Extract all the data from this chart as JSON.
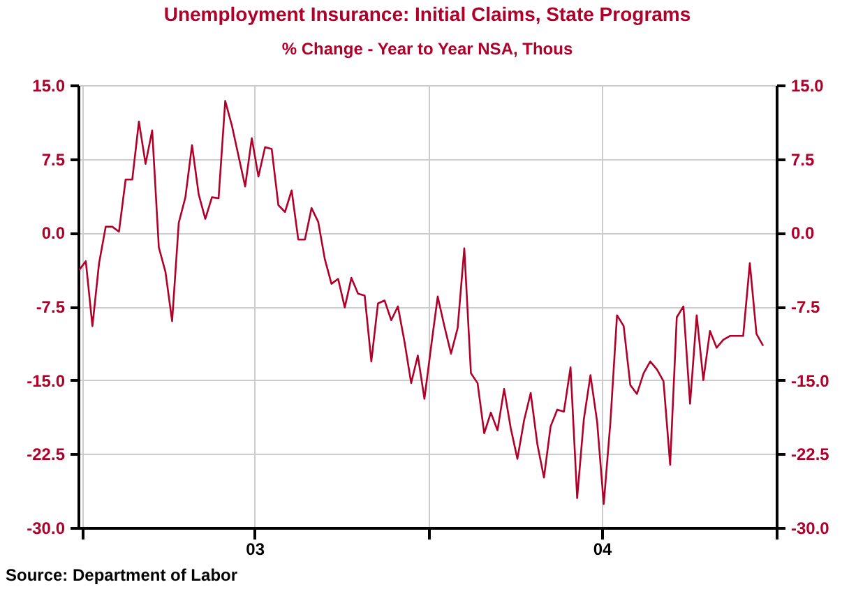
{
  "chart_data": {
    "type": "line",
    "title": "Unemployment Insurance: Initial Claims, State Programs",
    "subtitle": "% Change - Year to Year        NSA, Thous",
    "annotations": [
      "Source:  Department of Labor"
    ],
    "x": [
      "2002-12-28",
      "2003-01-04",
      "2003-01-11",
      "2003-01-18",
      "2003-01-25",
      "2003-02-01",
      "2003-02-08",
      "2003-02-15",
      "2003-02-22",
      "2003-03-01",
      "2003-03-08",
      "2003-03-15",
      "2003-03-22",
      "2003-03-29",
      "2003-04-05",
      "2003-04-12",
      "2003-04-19",
      "2003-04-26",
      "2003-05-03",
      "2003-05-10",
      "2003-05-17",
      "2003-05-24",
      "2003-05-31",
      "2003-06-07",
      "2003-06-14",
      "2003-06-21",
      "2003-06-28",
      "2003-07-05",
      "2003-07-12",
      "2003-07-19",
      "2003-07-26",
      "2003-08-02",
      "2003-08-09",
      "2003-08-16",
      "2003-08-23",
      "2003-08-30",
      "2003-09-06",
      "2003-09-13",
      "2003-09-20",
      "2003-09-27",
      "2003-10-04",
      "2003-10-11",
      "2003-10-18",
      "2003-10-25",
      "2003-11-01",
      "2003-11-08",
      "2003-11-15",
      "2003-11-22",
      "2003-11-29",
      "2003-12-06",
      "2003-12-13",
      "2003-12-20",
      "2003-12-27",
      "2004-01-03",
      "2004-01-10",
      "2004-01-17",
      "2004-01-24",
      "2004-01-31",
      "2004-02-07",
      "2004-02-14",
      "2004-02-21",
      "2004-02-28",
      "2004-03-06",
      "2004-03-13",
      "2004-03-20",
      "2004-03-27",
      "2004-04-03",
      "2004-04-10",
      "2004-04-17",
      "2004-04-24",
      "2004-05-01",
      "2004-05-08",
      "2004-05-15",
      "2004-05-22",
      "2004-05-29",
      "2004-06-05",
      "2004-06-12",
      "2004-06-19",
      "2004-06-26",
      "2004-07-03",
      "2004-07-10",
      "2004-07-17",
      "2004-07-24",
      "2004-07-31",
      "2004-08-07",
      "2004-08-14",
      "2004-08-21",
      "2004-08-28",
      "2004-09-04",
      "2004-09-11",
      "2004-09-18",
      "2004-09-25",
      "2004-10-02",
      "2004-10-09",
      "2004-10-16",
      "2004-10-23",
      "2004-10-30",
      "2004-11-06",
      "2004-11-13",
      "2004-11-20",
      "2004-11-27",
      "2004-12-04",
      "2004-12-11",
      "2004-12-18"
    ],
    "series": [
      {
        "color": "#b0002a",
        "values": [
          -3.8,
          -2.9,
          -9.5,
          -3.1,
          0.6,
          0.6,
          0.1,
          5.4,
          5.4,
          11.3,
          7.0,
          10.4,
          -1.5,
          -4.0,
          -9.0,
          1.0,
          3.6,
          8.9,
          3.9,
          1.4,
          3.6,
          3.5,
          13.4,
          10.9,
          7.8,
          4.7,
          9.6,
          5.7,
          8.7,
          8.5,
          2.8,
          2.1,
          4.3,
          -0.7,
          -0.7,
          2.5,
          1.1,
          -2.7,
          -5.2,
          -4.7,
          -7.6,
          -4.6,
          -6.2,
          -6.4,
          -13.1,
          -7.2,
          -6.9,
          -8.9,
          -7.5,
          -11.1,
          -15.3,
          -12.5,
          -16.9,
          -11.6,
          -6.5,
          -9.5,
          -12.3,
          -9.7,
          -1.6,
          -14.3,
          -15.3,
          -20.4,
          -18.3,
          -20.1,
          -15.9,
          -19.9,
          -23.0,
          -19.1,
          -16.3,
          -21.5,
          -24.9,
          -19.7,
          -18.0,
          -18.2,
          -13.7,
          -27.0,
          -19.0,
          -14.5,
          -19.2,
          -27.6,
          -19.3,
          -8.4,
          -9.5,
          -15.5,
          -16.4,
          -14.3,
          -13.1,
          -13.9,
          -15.1,
          -23.6,
          -8.6,
          -7.5,
          -17.4,
          -8.4,
          -15.0,
          -10.0,
          -11.7,
          -10.9,
          -10.5,
          -10.5,
          -10.5,
          -3.1,
          -10.3,
          -11.5
        ]
      }
    ],
    "xlim": [
      "2002-12-27",
      "2005-01-01"
    ],
    "xticks": [
      {
        "value": "2003-01-01",
        "label": null
      },
      {
        "value": "2003-07-01",
        "label": "03"
      },
      {
        "value": "2004-01-01",
        "label": null
      },
      {
        "value": "2004-07-01",
        "label": "04"
      },
      {
        "value": "2005-01-01",
        "label": null
      }
    ],
    "ylim": [
      -30,
      15
    ],
    "yticks": [
      {
        "value": 15,
        "label": "15.0"
      },
      {
        "value": 7.5,
        "label": "7.5"
      },
      {
        "value": 0,
        "label": "0.0"
      },
      {
        "value": -7.5,
        "label": "-7.5"
      },
      {
        "value": -15,
        "label": "-15.0"
      },
      {
        "value": -22.5,
        "label": "-22.5"
      },
      {
        "value": -30,
        "label": "-30.0"
      }
    ],
    "y2lim": [
      -30,
      15
    ],
    "y2ticks": [
      {
        "value": 15,
        "label": "15.0"
      },
      {
        "value": 7.5,
        "label": "7.5"
      },
      {
        "value": 0,
        "label": "0.0"
      },
      {
        "value": -7.5,
        "label": "-7.5"
      },
      {
        "value": -15,
        "label": "-15.0"
      },
      {
        "value": -22.5,
        "label": "-22.5"
      },
      {
        "value": -30,
        "label": "-30.0"
      }
    ],
    "grid": true,
    "legend": false,
    "marker": "none",
    "line_style": "solid"
  }
}
